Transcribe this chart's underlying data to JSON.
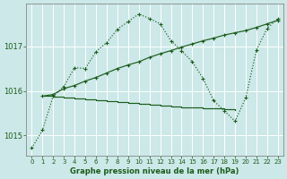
{
  "bg_color": "#cce8e8",
  "grid_color": "#ffffff",
  "line_color": "#1a5c1a",
  "title": "Graphe pression niveau de la mer (hPa)",
  "xticks": [
    0,
    1,
    2,
    3,
    4,
    5,
    6,
    7,
    8,
    9,
    10,
    11,
    12,
    13,
    14,
    15,
    16,
    17,
    18,
    19,
    20,
    21,
    22,
    23
  ],
  "yticks": [
    1015,
    1016,
    1017
  ],
  "ylim": [
    1014.55,
    1017.95
  ],
  "xlim": [
    -0.5,
    23.5
  ],
  "s1_x": [
    0,
    1,
    2,
    3,
    4,
    5,
    6,
    7,
    8,
    9,
    10,
    11,
    12,
    13,
    14,
    15,
    16,
    17,
    18,
    19,
    20,
    21,
    22,
    23
  ],
  "s1_y": [
    1014.72,
    1015.12,
    1015.88,
    1016.1,
    1016.52,
    1016.5,
    1016.88,
    1017.08,
    1017.38,
    1017.55,
    1017.72,
    1017.62,
    1017.5,
    1017.12,
    1016.9,
    1016.65,
    1016.28,
    1015.78,
    1015.55,
    1015.32,
    1015.85,
    1016.92,
    1017.4,
    1017.62
  ],
  "s2_x": [
    1,
    2,
    3,
    4,
    5,
    6,
    7,
    8,
    9,
    10,
    11,
    12,
    13,
    14,
    15,
    16,
    17,
    18,
    19,
    20,
    21,
    22,
    23
  ],
  "s2_y": [
    1015.88,
    1015.92,
    1016.05,
    1016.12,
    1016.22,
    1016.3,
    1016.4,
    1016.5,
    1016.58,
    1016.65,
    1016.75,
    1016.83,
    1016.9,
    1016.98,
    1017.05,
    1017.12,
    1017.18,
    1017.25,
    1017.3,
    1017.35,
    1017.42,
    1017.5,
    1017.58
  ],
  "s3_x": [
    1,
    2,
    3,
    4,
    5,
    6,
    7,
    8,
    9,
    10,
    11,
    12,
    13,
    14,
    15,
    16,
    17,
    18,
    19
  ],
  "s3_y": [
    1015.88,
    1015.86,
    1015.84,
    1015.82,
    1015.8,
    1015.78,
    1015.76,
    1015.74,
    1015.72,
    1015.7,
    1015.68,
    1015.66,
    1015.64,
    1015.63,
    1015.62,
    1015.61,
    1015.6,
    1015.58,
    1015.57
  ]
}
